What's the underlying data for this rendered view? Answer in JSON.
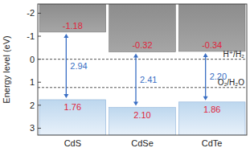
{
  "chart_data": {
    "type": "band",
    "y_label": "Energy level (eV)",
    "categories": [
      "CdS",
      "CdSe",
      "CdTe"
    ],
    "series": [
      {
        "color": "#a6a6a6",
        "values": [
          -1.18,
          -0.32,
          -0.34
        ],
        "value_labels": [
          "-1.18",
          "-0.32",
          "-0.34"
        ]
      },
      {
        "color": "#bdd7ee",
        "values": [
          1.76,
          2.1,
          1.86
        ],
        "value_labels": [
          "1.76",
          "2.10",
          "1.86"
        ]
      },
      {
        "color": "#3a6fc4",
        "values": [
          2.94,
          2.41,
          2.2
        ],
        "value_labels": [
          "2.94",
          "2.41",
          "2.20"
        ]
      }
    ],
    "reference_lines": [
      {
        "value": 0,
        "label": "H⁺/H₂"
      },
      {
        "value": 1.23,
        "label": "O₂/H₂O"
      }
    ],
    "ylim": [
      -2.4,
      3.3
    ],
    "yticks": [
      -2,
      -1,
      0,
      1,
      2,
      3
    ],
    "data_labels": true
  }
}
